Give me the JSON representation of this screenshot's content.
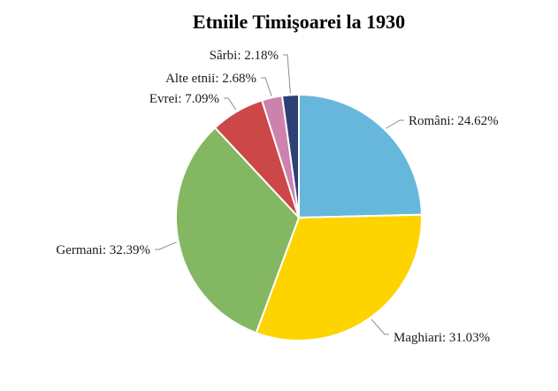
{
  "chart_data": {
    "type": "pie",
    "title": "Etniile Timişoarei la 1930",
    "slices": [
      {
        "label": "Români",
        "value": 24.62,
        "value_label": "24.62%",
        "color": "#67B7DC"
      },
      {
        "label": "Maghiari",
        "value": 31.03,
        "value_label": "31.03%",
        "color": "#FDD400"
      },
      {
        "label": "Germani",
        "value": 32.39,
        "value_label": "32.39%",
        "color": "#84B761"
      },
      {
        "label": "Evrei",
        "value": 7.09,
        "value_label": "7.09%",
        "color": "#CC4748"
      },
      {
        "label": "Alte etnii",
        "value": 2.68,
        "value_label": "2.68%",
        "color": "#CD82AD"
      },
      {
        "label": "Sârbi",
        "value": 2.18,
        "value_label": "2.18%",
        "color": "#2F4074"
      }
    ],
    "start_angle": "12 o'clock",
    "direction": "clockwise",
    "legend": "none"
  }
}
